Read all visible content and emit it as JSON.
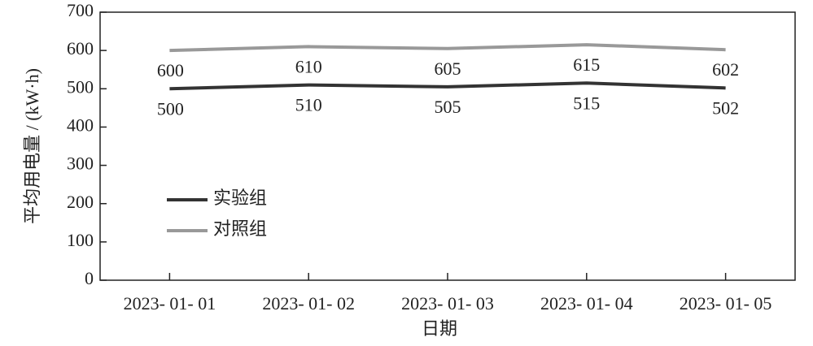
{
  "chart_data": {
    "type": "line",
    "x_label": "日期",
    "y_label": "平均用电量 / (kW·h)",
    "categories": [
      "2023- 01- 01",
      "2023- 01- 02",
      "2023- 01- 03",
      "2023- 01- 04",
      "2023- 01- 05"
    ],
    "series": [
      {
        "name": "实验组",
        "color": "#333333",
        "values": [
          500,
          510,
          505,
          515,
          502
        ]
      },
      {
        "name": "对照组",
        "color": "#999999",
        "values": [
          600,
          610,
          605,
          615,
          602
        ]
      }
    ],
    "ylim": [
      0,
      700
    ],
    "yticks": [
      0,
      100,
      200,
      300,
      400,
      500,
      600,
      700
    ],
    "grid": false,
    "legend": "lower left",
    "data_labels": true
  }
}
